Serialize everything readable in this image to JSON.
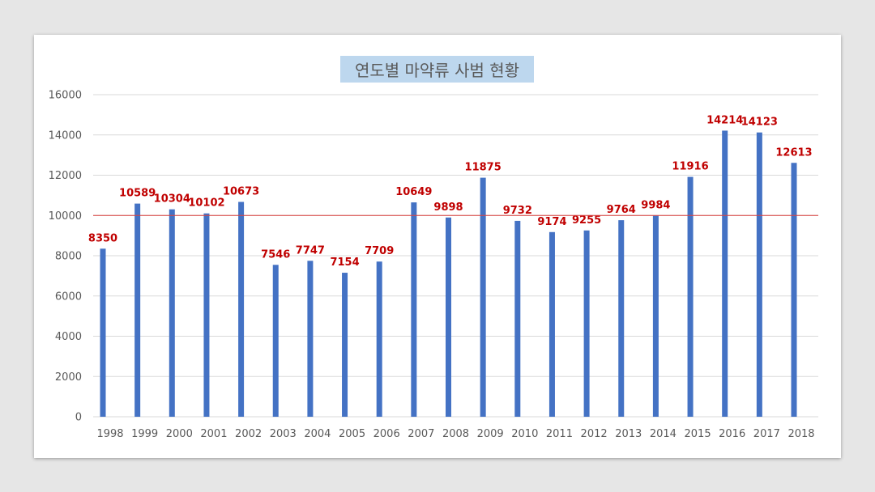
{
  "chart_data": {
    "type": "bar",
    "title": "연도별 마약류 사범 현황",
    "categories": [
      "1998",
      "1999",
      "2000",
      "2001",
      "2002",
      "2003",
      "2004",
      "2005",
      "2006",
      "2007",
      "2008",
      "2009",
      "2010",
      "2011",
      "2012",
      "2013",
      "2014",
      "2015",
      "2016",
      "2017",
      "2018"
    ],
    "values": [
      8350,
      10589,
      10304,
      10102,
      10673,
      7546,
      7747,
      7154,
      7709,
      10649,
      9898,
      11875,
      9732,
      9174,
      9255,
      9764,
      9984,
      11916,
      14214,
      14123,
      12613
    ],
    "ylim": [
      0,
      16000
    ],
    "yticks": [
      0,
      2000,
      4000,
      6000,
      8000,
      10000,
      12000,
      14000,
      16000
    ],
    "reference_line": 10000,
    "grid": true,
    "xlabel": "",
    "ylabel": "",
    "colors": {
      "bar": "#4472c4",
      "label": "#c00000",
      "reference_line": "#d9413f",
      "title_bg": "#bdd7ee"
    }
  }
}
